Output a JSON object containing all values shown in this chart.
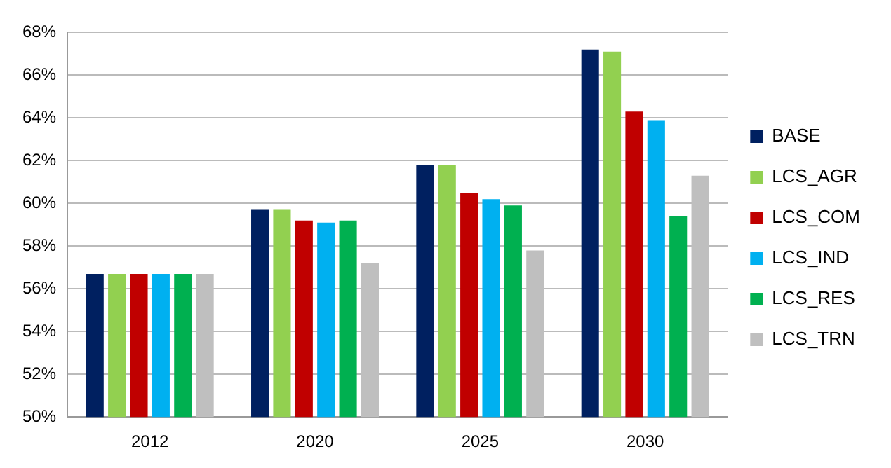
{
  "chart_data": {
    "type": "bar",
    "categories": [
      "2012",
      "2020",
      "2025",
      "2030"
    ],
    "series": [
      {
        "name": "BASE",
        "color": "#002060",
        "values": [
          56.7,
          59.7,
          61.8,
          67.2
        ]
      },
      {
        "name": "LCS_AGR",
        "color": "#92d050",
        "values": [
          56.7,
          59.7,
          61.8,
          67.1
        ]
      },
      {
        "name": "LCS_COM",
        "color": "#c00000",
        "values": [
          56.7,
          59.2,
          60.5,
          64.3
        ]
      },
      {
        "name": "LCS_IND",
        "color": "#00b0f0",
        "values": [
          56.7,
          59.1,
          60.2,
          63.9
        ]
      },
      {
        "name": "LCS_RES",
        "color": "#00b050",
        "values": [
          56.7,
          59.2,
          59.9,
          59.4
        ]
      },
      {
        "name": "LCS_TRN",
        "color": "#bfbfbf",
        "values": [
          56.7,
          57.2,
          57.8,
          61.3
        ]
      }
    ],
    "ylim": [
      50,
      68
    ],
    "yticks": [
      {
        "value": 50,
        "label": "50%"
      },
      {
        "value": 52,
        "label": "52%"
      },
      {
        "value": 54,
        "label": "54%"
      },
      {
        "value": 56,
        "label": "56%"
      },
      {
        "value": 58,
        "label": "58%"
      },
      {
        "value": 60,
        "label": "60%"
      },
      {
        "value": 62,
        "label": "62%"
      },
      {
        "value": 64,
        "label": "64%"
      },
      {
        "value": 66,
        "label": "66%"
      },
      {
        "value": 68,
        "label": "68%"
      }
    ],
    "grid": "y",
    "legend": "right"
  }
}
